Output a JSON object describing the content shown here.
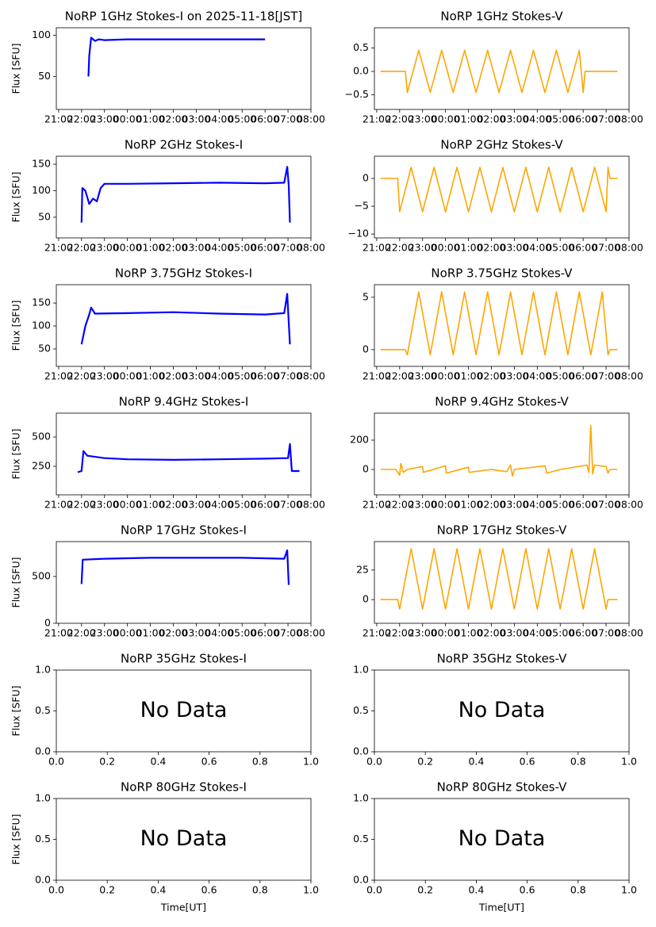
{
  "chart_data": [
    {
      "type": "line",
      "title": "NoRP 1GHz Stokes-I on 2025-11-18[JST]",
      "ylabel": "Flux [SFU]",
      "x": [
        "22:18",
        "22:20",
        "22:25",
        "22:35",
        "22:45",
        "23:00",
        "00:00",
        "01:00",
        "02:00",
        "03:00",
        "04:00",
        "05:00",
        "06:00"
      ],
      "series": [
        {
          "color": "#0000ff",
          "values": [
            50,
            75,
            97,
            93,
            95,
            94,
            95,
            95,
            95,
            95,
            95,
            95,
            95
          ]
        }
      ],
      "xlim": [
        "20:54",
        "08:00"
      ],
      "xticks": [
        "21:00",
        "22:00",
        "23:00",
        "00:00",
        "01:00",
        "02:00",
        "03:00",
        "04:00",
        "05:00",
        "06:00",
        "07:00",
        "08:00"
      ],
      "ylim": [
        10,
        109
      ],
      "yticks": [
        50,
        100
      ]
    },
    {
      "type": "line",
      "title": "NoRP 1GHz Stokes-V",
      "x": [
        "21:10",
        "22:15",
        "22:20",
        "22:50",
        "23:20",
        "23:50",
        "00:20",
        "00:50",
        "01:20",
        "01:50",
        "02:20",
        "02:50",
        "03:20",
        "03:50",
        "04:20",
        "04:50",
        "05:20",
        "05:50",
        "06:00",
        "06:05",
        "07:30"
      ],
      "series": [
        {
          "color": "#ffa500",
          "values": [
            0,
            0,
            -0.45,
            0.45,
            -0.45,
            0.45,
            -0.45,
            0.45,
            -0.45,
            0.45,
            -0.45,
            0.45,
            -0.45,
            0.45,
            -0.45,
            0.45,
            -0.45,
            0.45,
            -0.45,
            0,
            0
          ]
        }
      ],
      "xlim": [
        "20:54",
        "08:00"
      ],
      "xticks": [
        "21:00",
        "22:00",
        "23:00",
        "00:00",
        "01:00",
        "02:00",
        "03:00",
        "04:00",
        "05:00",
        "06:00",
        "07:00",
        "08:00"
      ],
      "ylim": [
        -0.81,
        0.93
      ],
      "yticks": [
        {
          "value": -0.5,
          "label": "−0.5"
        },
        {
          "value": 0,
          "label": "0.0"
        },
        0.5
      ]
    },
    {
      "type": "line",
      "title": "NoRP 2GHz Stokes-I",
      "ylabel": "Flux [SFU]",
      "x": [
        "22:00",
        "22:02",
        "22:10",
        "22:20",
        "22:30",
        "22:40",
        "22:50",
        "23:00",
        "00:00",
        "02:00",
        "04:00",
        "06:00",
        "06:50",
        "06:58",
        "07:02",
        "07:05"
      ],
      "series": [
        {
          "color": "#0000ff",
          "values": [
            40,
            105,
            100,
            75,
            85,
            80,
            105,
            113,
            113,
            114,
            115,
            114,
            115,
            145,
            110,
            40
          ]
        }
      ],
      "xlim": [
        "20:54",
        "08:00"
      ],
      "xticks": [
        "21:00",
        "22:00",
        "23:00",
        "00:00",
        "01:00",
        "02:00",
        "03:00",
        "04:00",
        "05:00",
        "06:00",
        "07:00",
        "08:00"
      ],
      "ylim": [
        11,
        165
      ],
      "yticks": [
        50,
        100,
        150
      ]
    },
    {
      "type": "line",
      "title": "NoRP 2GHz Stokes-V",
      "x": [
        "21:10",
        "21:55",
        "22:00",
        "22:30",
        "23:00",
        "23:30",
        "00:00",
        "00:30",
        "01:00",
        "01:30",
        "02:00",
        "02:30",
        "03:00",
        "03:30",
        "04:00",
        "04:30",
        "05:00",
        "05:30",
        "06:00",
        "06:30",
        "07:00",
        "07:05",
        "07:10",
        "07:30"
      ],
      "series": [
        {
          "color": "#ffa500",
          "values": [
            0,
            0,
            -6,
            2,
            -6,
            2,
            -6,
            2,
            -6,
            2,
            -6,
            2,
            -6,
            2,
            -6,
            2,
            -6,
            2,
            -6,
            2,
            -6,
            2,
            0,
            0
          ]
        }
      ],
      "xlim": [
        "20:54",
        "08:00"
      ],
      "xticks": [
        "21:00",
        "22:00",
        "23:00",
        "00:00",
        "01:00",
        "02:00",
        "03:00",
        "04:00",
        "05:00",
        "06:00",
        "07:00",
        "08:00"
      ],
      "ylim": [
        -10.7,
        4
      ],
      "yticks": [
        {
          "value": -10,
          "label": "−10"
        },
        {
          "value": -5,
          "label": "−5"
        },
        0
      ]
    },
    {
      "type": "line",
      "title": "NoRP 3.75GHz Stokes-I",
      "ylabel": "Flux [SFU]",
      "x": [
        "22:00",
        "22:10",
        "22:20",
        "22:25",
        "22:35",
        "00:00",
        "02:00",
        "04:00",
        "06:00",
        "06:50",
        "06:58",
        "07:05"
      ],
      "series": [
        {
          "color": "#0000ff",
          "values": [
            60,
            100,
            125,
            140,
            127,
            128,
            130,
            127,
            125,
            128,
            170,
            60
          ]
        }
      ],
      "xlim": [
        "20:54",
        "08:00"
      ],
      "xticks": [
        "21:00",
        "22:00",
        "23:00",
        "00:00",
        "01:00",
        "02:00",
        "03:00",
        "04:00",
        "05:00",
        "06:00",
        "07:00",
        "08:00"
      ],
      "ylim": [
        12,
        190
      ],
      "yticks": [
        50,
        100,
        150
      ]
    },
    {
      "type": "line",
      "title": "NoRP 3.75GHz Stokes-V",
      "x": [
        "21:10",
        "22:15",
        "22:20",
        "22:50",
        "23:20",
        "23:50",
        "00:20",
        "00:50",
        "01:20",
        "01:50",
        "02:20",
        "02:50",
        "03:20",
        "03:50",
        "04:20",
        "04:50",
        "05:20",
        "05:50",
        "06:20",
        "06:50",
        "07:05",
        "07:10",
        "07:30"
      ],
      "series": [
        {
          "color": "#ffa500",
          "values": [
            0,
            0,
            -0.5,
            5.5,
            -0.5,
            5.5,
            -0.5,
            5.5,
            -0.5,
            5.5,
            -0.5,
            5.5,
            -0.5,
            5.5,
            -0.5,
            5.5,
            -0.5,
            5.5,
            -0.5,
            5.5,
            -0.5,
            0,
            0
          ]
        }
      ],
      "xlim": [
        "20:54",
        "08:00"
      ],
      "xticks": [
        "21:00",
        "22:00",
        "23:00",
        "00:00",
        "01:00",
        "02:00",
        "03:00",
        "04:00",
        "05:00",
        "06:00",
        "07:00",
        "08:00"
      ],
      "ylim": [
        -1.6,
        6.2
      ],
      "yticks": [
        0,
        5
      ]
    },
    {
      "type": "line",
      "title": "NoRP 9.4GHz Stokes-I",
      "ylabel": "Flux [SFU]",
      "x": [
        "21:50",
        "22:00",
        "22:05",
        "22:15",
        "23:00",
        "00:00",
        "02:00",
        "04:00",
        "06:00",
        "07:00",
        "07:05",
        "07:10",
        "07:30"
      ],
      "series": [
        {
          "color": "#0000ff",
          "values": [
            200,
            210,
            380,
            340,
            320,
            310,
            305,
            310,
            315,
            320,
            440,
            210,
            210
          ]
        }
      ],
      "xlim": [
        "20:54",
        "08:00"
      ],
      "xticks": [
        "21:00",
        "22:00",
        "23:00",
        "00:00",
        "01:00",
        "02:00",
        "03:00",
        "04:00",
        "05:00",
        "06:00",
        "07:00",
        "08:00"
      ],
      "ylim": [
        7,
        703
      ],
      "yticks": [
        250,
        500
      ]
    },
    {
      "type": "line",
      "title": "NoRP 9.4GHz Stokes-V",
      "x": [
        "21:10",
        "21:50",
        "22:00",
        "22:03",
        "22:10",
        "22:20",
        "23:00",
        "23:02",
        "00:00",
        "00:02",
        "01:00",
        "01:02",
        "02:00",
        "02:40",
        "02:50",
        "02:55",
        "03:00",
        "04:20",
        "04:25",
        "05:00",
        "06:10",
        "06:15",
        "06:20",
        "06:25",
        "06:30",
        "07:00",
        "07:05",
        "07:10",
        "07:30"
      ],
      "series": [
        {
          "color": "#ffa500",
          "values": [
            0,
            0,
            -40,
            40,
            -20,
            0,
            20,
            -20,
            25,
            -25,
            15,
            -20,
            0,
            -15,
            30,
            -45,
            0,
            25,
            -25,
            0,
            30,
            -20,
            300,
            -30,
            30,
            20,
            -25,
            0,
            0
          ]
        }
      ],
      "xlim": [
        "20:54",
        "08:00"
      ],
      "xticks": [
        "21:00",
        "22:00",
        "23:00",
        "00:00",
        "01:00",
        "02:00",
        "03:00",
        "04:00",
        "05:00",
        "06:00",
        "07:00",
        "08:00"
      ],
      "ylim": [
        -173,
        384
      ],
      "yticks": [
        0,
        200
      ]
    },
    {
      "type": "line",
      "title": "NoRP 17GHz Stokes-I",
      "ylabel": "Flux [SFU]",
      "x": [
        "22:00",
        "22:03",
        "23:00",
        "01:00",
        "03:00",
        "05:00",
        "06:50",
        "06:58",
        "07:02"
      ],
      "series": [
        {
          "color": "#0000ff",
          "values": [
            420,
            680,
            690,
            700,
            700,
            700,
            690,
            780,
            410
          ]
        }
      ],
      "xlim": [
        "20:54",
        "08:00"
      ],
      "xticks": [
        "21:00",
        "22:00",
        "23:00",
        "00:00",
        "01:00",
        "02:00",
        "03:00",
        "04:00",
        "05:00",
        "06:00",
        "07:00",
        "08:00"
      ],
      "ylim": [
        0,
        873
      ],
      "yticks": [
        0,
        500
      ]
    },
    {
      "type": "line",
      "title": "NoRP 17GHz Stokes-V",
      "x": [
        "21:10",
        "21:55",
        "22:00",
        "22:30",
        "23:00",
        "23:30",
        "00:00",
        "00:30",
        "01:00",
        "01:30",
        "02:00",
        "02:30",
        "03:00",
        "03:30",
        "04:00",
        "04:30",
        "05:00",
        "05:30",
        "06:00",
        "06:30",
        "07:00",
        "07:05",
        "07:30"
      ],
      "series": [
        {
          "color": "#ffa500",
          "values": [
            0,
            0,
            -8,
            43,
            -8,
            43,
            -8,
            43,
            -8,
            43,
            -8,
            43,
            -8,
            43,
            -8,
            43,
            -8,
            43,
            -8,
            43,
            -8,
            0,
            0
          ]
        }
      ],
      "xlim": [
        "20:54",
        "08:00"
      ],
      "xticks": [
        "21:00",
        "22:00",
        "23:00",
        "00:00",
        "01:00",
        "02:00",
        "03:00",
        "04:00",
        "05:00",
        "06:00",
        "07:00",
        "08:00"
      ],
      "ylim": [
        -20,
        49
      ],
      "yticks": [
        0,
        25
      ]
    },
    {
      "type": "line",
      "title": "NoRP 35GHz Stokes-I",
      "ylabel": "Flux [SFU]",
      "annotation": "No Data",
      "xlim": [
        0,
        1
      ],
      "xticks": [
        {
          "value": 0,
          "label": "0.0"
        },
        {
          "value": 0.2,
          "label": "0.2"
        },
        {
          "value": 0.4,
          "label": "0.4"
        },
        {
          "value": 0.6,
          "label": "0.6"
        },
        {
          "value": 0.8,
          "label": "0.8"
        },
        {
          "value": 1,
          "label": "1.0"
        }
      ],
      "ylim": [
        0,
        1
      ],
      "yticks": [
        {
          "value": 0,
          "label": "0.0"
        },
        {
          "value": 0.5,
          "label": "0.5"
        },
        {
          "value": 1,
          "label": "1.0"
        }
      ]
    },
    {
      "type": "line",
      "title": "NoRP 35GHz Stokes-V",
      "annotation": "No Data",
      "xlim": [
        0,
        1
      ],
      "xticks": [
        {
          "value": 0,
          "label": "0.0"
        },
        {
          "value": 0.2,
          "label": "0.2"
        },
        {
          "value": 0.4,
          "label": "0.4"
        },
        {
          "value": 0.6,
          "label": "0.6"
        },
        {
          "value": 0.8,
          "label": "0.8"
        },
        {
          "value": 1,
          "label": "1.0"
        }
      ],
      "ylim": [
        0,
        1
      ],
      "yticks": [
        {
          "value": 0,
          "label": "0.0"
        },
        {
          "value": 0.5,
          "label": "0.5"
        },
        {
          "value": 1,
          "label": "1.0"
        }
      ]
    },
    {
      "type": "line",
      "title": "NoRP 80GHz Stokes-I",
      "ylabel": "Flux [SFU]",
      "xlabel": "Time[UT]",
      "annotation": "No Data",
      "xlim": [
        0,
        1
      ],
      "xticks": [
        {
          "value": 0,
          "label": "0.0"
        },
        {
          "value": 0.2,
          "label": "0.2"
        },
        {
          "value": 0.4,
          "label": "0.4"
        },
        {
          "value": 0.6,
          "label": "0.6"
        },
        {
          "value": 0.8,
          "label": "0.8"
        },
        {
          "value": 1,
          "label": "1.0"
        }
      ],
      "ylim": [
        0,
        1
      ],
      "yticks": [
        {
          "value": 0,
          "label": "0.0"
        },
        {
          "value": 0.5,
          "label": "0.5"
        },
        {
          "value": 1,
          "label": "1.0"
        }
      ]
    },
    {
      "type": "line",
      "title": "NoRP 80GHz Stokes-V",
      "xlabel": "Time[UT]",
      "annotation": "No Data",
      "xlim": [
        0,
        1
      ],
      "xticks": [
        {
          "value": 0,
          "label": "0.0"
        },
        {
          "value": 0.2,
          "label": "0.2"
        },
        {
          "value": 0.4,
          "label": "0.4"
        },
        {
          "value": 0.6,
          "label": "0.6"
        },
        {
          "value": 0.8,
          "label": "0.8"
        },
        {
          "value": 1,
          "label": "1.0"
        }
      ],
      "ylim": [
        0,
        1
      ],
      "yticks": [
        {
          "value": 0,
          "label": "0.0"
        },
        {
          "value": 0.5,
          "label": "0.5"
        },
        {
          "value": 1,
          "label": "1.0"
        }
      ]
    }
  ]
}
